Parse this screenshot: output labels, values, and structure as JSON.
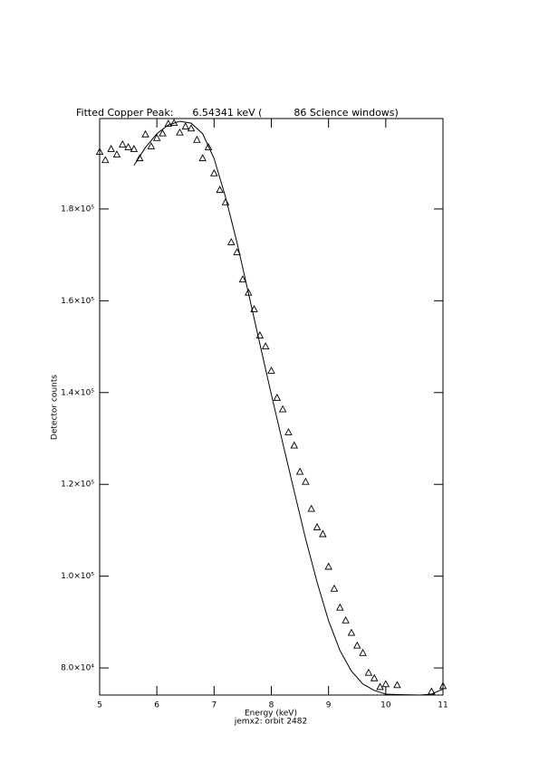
{
  "chart_data": {
    "type": "scatter",
    "title": "Fitted Copper Peak:      6.54341 keV (          86 Science windows)",
    "x_label": "Energy (keV)",
    "y_label": "Detector counts",
    "caption": "jemx2: orbit 2482",
    "xlim": [
      5,
      11
    ],
    "ylim": [
      74100,
      199700
    ],
    "xticks": [
      5,
      6,
      7,
      8,
      9,
      10,
      11
    ],
    "yticks": [
      {
        "value": 80000,
        "label": "8.0×10⁴"
      },
      {
        "value": 100000,
        "label": "1.0×10⁵"
      },
      {
        "value": 120000,
        "label": "1.2×10⁵"
      },
      {
        "value": 140000,
        "label": "1.4×10⁵"
      },
      {
        "value": 160000,
        "label": "1.6×10⁵"
      },
      {
        "value": 180000,
        "label": "1.8×10⁵"
      }
    ],
    "color": "#000000",
    "points": {
      "x": [
        5.0,
        5.1,
        5.2,
        5.3,
        5.4,
        5.5,
        5.6,
        5.7,
        5.8,
        5.9,
        6.0,
        6.1,
        6.2,
        6.3,
        6.4,
        6.5,
        6.6,
        6.7,
        6.8,
        6.9,
        7.0,
        7.1,
        7.2,
        7.3,
        7.4,
        7.5,
        7.6,
        7.7,
        7.8,
        7.9,
        8.0,
        8.1,
        8.2,
        8.3,
        8.4,
        8.5,
        8.6,
        8.7,
        8.8,
        8.9,
        9.0,
        9.1,
        9.2,
        9.3,
        9.4,
        9.5,
        9.6,
        9.7,
        9.8,
        9.9,
        10.0,
        10.2,
        10.8,
        11.0
      ],
      "values": [
        192400,
        190600,
        193000,
        191800,
        194000,
        193400,
        193000,
        191000,
        196200,
        193600,
        195400,
        196400,
        198500,
        198700,
        196600,
        197900,
        197500,
        195000,
        191000,
        193400,
        187700,
        184100,
        181400,
        172700,
        170500,
        164600,
        161700,
        158100,
        152400,
        150000,
        144700,
        138800,
        136300,
        131300,
        128400,
        122700,
        120500,
        114600,
        110600,
        109100,
        102000,
        97200,
        93100,
        90300,
        87600,
        84800,
        83200,
        78900,
        77700,
        75800,
        76400,
        76200,
        74800,
        76000
      ]
    },
    "fit": {
      "x": [
        5.6,
        5.8,
        6.0,
        6.2,
        6.4,
        6.6,
        6.8,
        7.0,
        7.2,
        7.4,
        7.6,
        7.8,
        8.0,
        8.2,
        8.4,
        8.6,
        8.8,
        9.0,
        9.2,
        9.4,
        9.6,
        9.8,
        10.0,
        10.2,
        10.6,
        10.8,
        11.0
      ],
      "values": [
        189500,
        193400,
        196400,
        198300,
        199100,
        198700,
        196400,
        191000,
        182600,
        172700,
        161700,
        150600,
        139600,
        129000,
        118500,
        108100,
        98700,
        90300,
        83800,
        79300,
        76500,
        75100,
        74300,
        74200,
        74100,
        74300,
        75400
      ]
    }
  }
}
